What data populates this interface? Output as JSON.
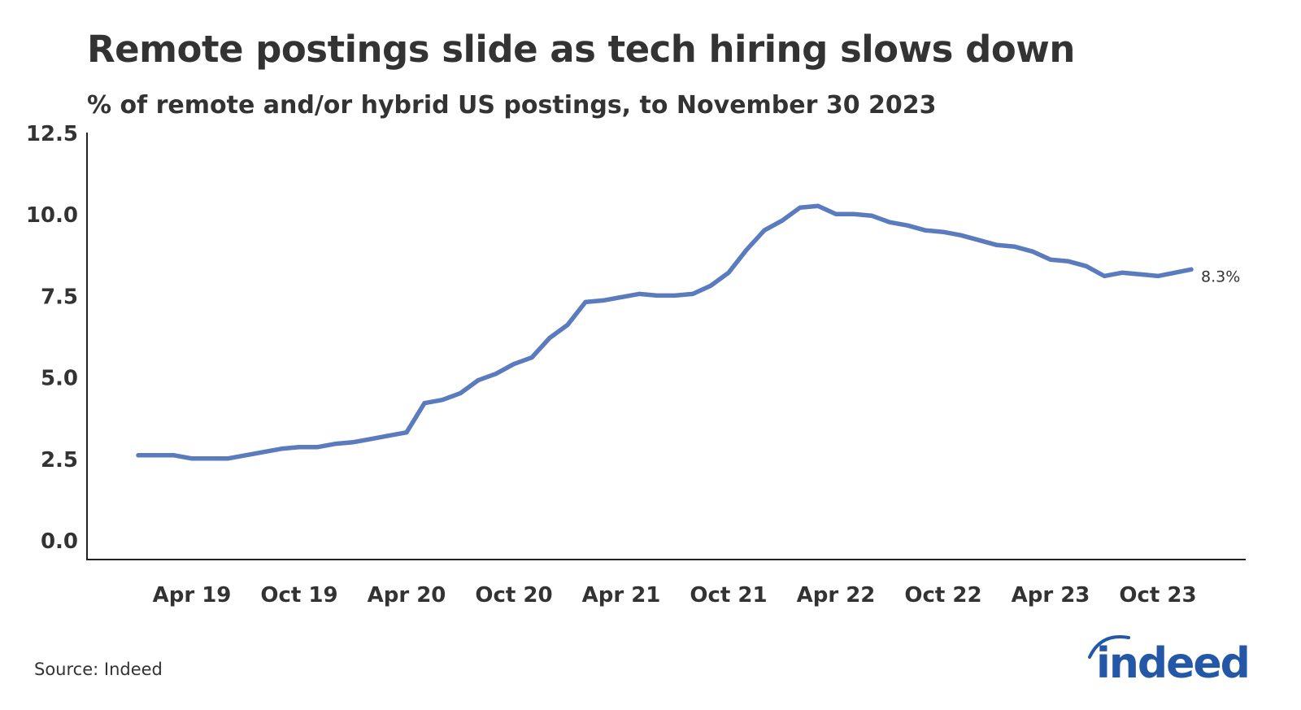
{
  "chart_data": {
    "type": "line",
    "title": "Remote postings slide as tech hiring slows down",
    "subtitle": "% of remote and/or hybrid US postings, to November 30 2023",
    "xlabel": "",
    "ylabel": "",
    "ylim": [
      0,
      12.5
    ],
    "yticks": [
      "0.0",
      "2.5",
      "5.0",
      "7.5",
      "10.0",
      "12.5"
    ],
    "xticks": [
      {
        "label": "Apr 19",
        "date": "2019-04"
      },
      {
        "label": "Oct 19",
        "date": "2019-10"
      },
      {
        "label": "Apr 20",
        "date": "2020-04"
      },
      {
        "label": "Oct 20",
        "date": "2020-10"
      },
      {
        "label": "Apr 21",
        "date": "2021-04"
      },
      {
        "label": "Oct 21",
        "date": "2021-10"
      },
      {
        "label": "Apr 22",
        "date": "2022-04"
      },
      {
        "label": "Oct 22",
        "date": "2022-10"
      },
      {
        "label": "Apr 23",
        "date": "2023-04"
      },
      {
        "label": "Oct 23",
        "date": "2023-10"
      }
    ],
    "grid": false,
    "line_color": "#5b7bbf",
    "end_label": "8.3%",
    "x": [
      "2019-01",
      "2019-02",
      "2019-03",
      "2019-04",
      "2019-05",
      "2019-06",
      "2019-07",
      "2019-08",
      "2019-09",
      "2019-10",
      "2019-11",
      "2019-12",
      "2020-01",
      "2020-02",
      "2020-03",
      "2020-04",
      "2020-05",
      "2020-06",
      "2020-07",
      "2020-08",
      "2020-09",
      "2020-10",
      "2020-11",
      "2020-12",
      "2021-01",
      "2021-02",
      "2021-03",
      "2021-04",
      "2021-05",
      "2021-06",
      "2021-07",
      "2021-08",
      "2021-09",
      "2021-10",
      "2021-11",
      "2021-12",
      "2022-01",
      "2022-02",
      "2022-03",
      "2022-04",
      "2022-05",
      "2022-06",
      "2022-07",
      "2022-08",
      "2022-09",
      "2022-10",
      "2022-11",
      "2022-12",
      "2023-01",
      "2023-02",
      "2023-03",
      "2023-04",
      "2023-05",
      "2023-06",
      "2023-07",
      "2023-08",
      "2023-09",
      "2023-10",
      "2023-11"
    ],
    "values": [
      2.6,
      2.6,
      2.6,
      2.5,
      2.5,
      2.5,
      2.6,
      2.7,
      2.8,
      2.85,
      2.85,
      2.95,
      3.0,
      3.1,
      3.2,
      3.3,
      4.2,
      4.3,
      4.5,
      4.9,
      5.1,
      5.4,
      5.6,
      6.2,
      6.6,
      7.3,
      7.35,
      7.45,
      7.55,
      7.5,
      7.5,
      7.55,
      7.8,
      8.2,
      8.9,
      9.5,
      9.8,
      10.2,
      10.25,
      10.0,
      10.0,
      9.95,
      9.75,
      9.65,
      9.5,
      9.45,
      9.35,
      9.2,
      9.05,
      9.0,
      8.85,
      8.6,
      8.55,
      8.4,
      8.1,
      8.2,
      8.15,
      8.1,
      8.3
    ]
  },
  "source": "Source: Indeed",
  "logo": {
    "text": "indeed",
    "color": "#2557a7"
  }
}
